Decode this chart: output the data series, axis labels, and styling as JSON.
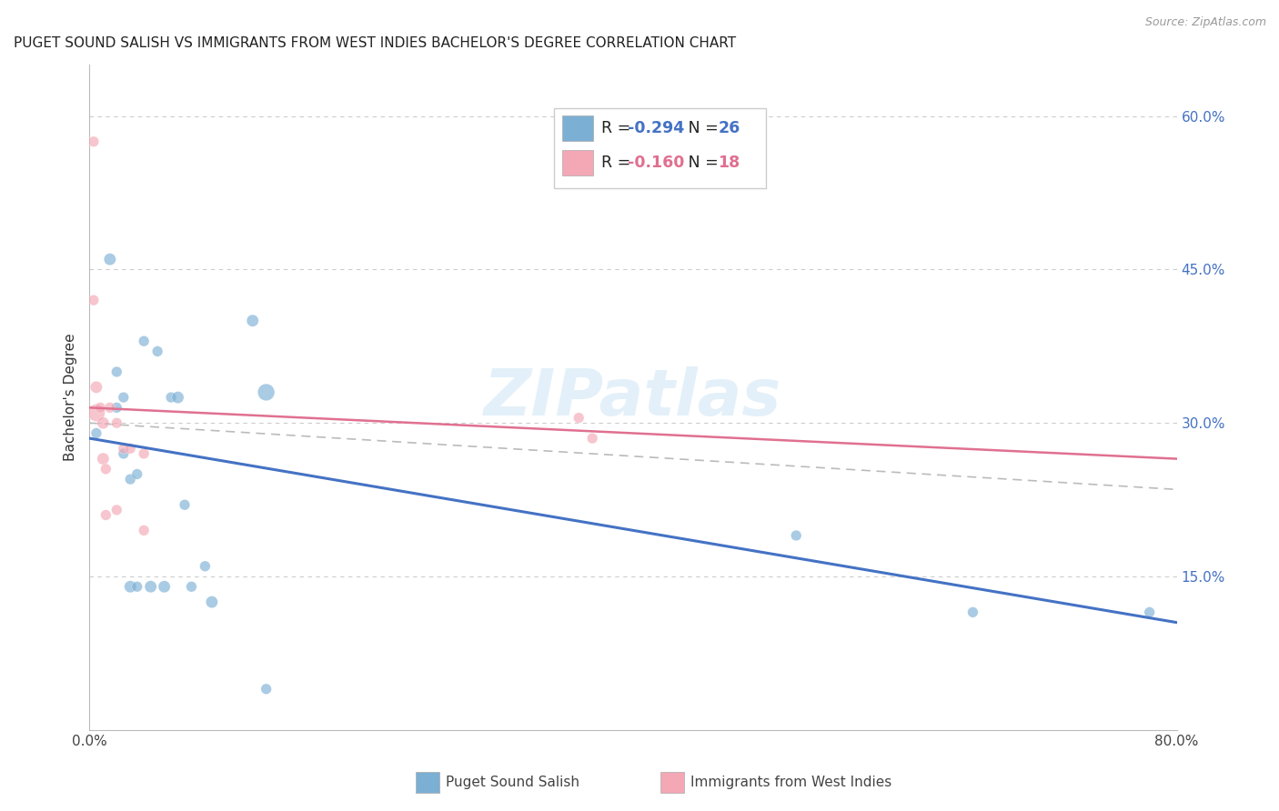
{
  "title": "PUGET SOUND SALISH VS IMMIGRANTS FROM WEST INDIES BACHELOR'S DEGREE CORRELATION CHART",
  "source": "Source: ZipAtlas.com",
  "ylabel": "Bachelor's Degree",
  "xlim": [
    0,
    0.8
  ],
  "ylim": [
    0,
    0.65
  ],
  "x_ticks": [
    0.0,
    0.2,
    0.4,
    0.6,
    0.8
  ],
  "x_tick_labels": [
    "0.0%",
    "",
    "",
    "",
    "80.0%"
  ],
  "y_ticks_right": [
    0.15,
    0.3,
    0.45,
    0.6
  ],
  "y_tick_labels_right": [
    "15.0%",
    "30.0%",
    "45.0%",
    "60.0%"
  ],
  "background_color": "#ffffff",
  "grid_color": "#cccccc",
  "blue_color": "#7bafd4",
  "pink_color": "#f4a7b5",
  "blue_line_color": "#4472c4",
  "pink_line_color": "#e07090",
  "dash_line_color": "#bbbbbb",
  "watermark_color": "#cde4f5",
  "blue_scatter_x": [
    0.005,
    0.015,
    0.02,
    0.02,
    0.025,
    0.025,
    0.03,
    0.03,
    0.035,
    0.035,
    0.04,
    0.045,
    0.05,
    0.055,
    0.06,
    0.065,
    0.07,
    0.075,
    0.085,
    0.09,
    0.12,
    0.13,
    0.13,
    0.52,
    0.65,
    0.78
  ],
  "blue_scatter_y": [
    0.29,
    0.46,
    0.35,
    0.315,
    0.325,
    0.27,
    0.245,
    0.14,
    0.25,
    0.14,
    0.38,
    0.14,
    0.37,
    0.14,
    0.325,
    0.325,
    0.22,
    0.14,
    0.16,
    0.125,
    0.4,
    0.33,
    0.04,
    0.19,
    0.115,
    0.115
  ],
  "blue_scatter_sizes": [
    70,
    90,
    70,
    70,
    70,
    70,
    70,
    90,
    70,
    70,
    70,
    90,
    70,
    90,
    70,
    90,
    70,
    70,
    70,
    90,
    90,
    180,
    70,
    70,
    70,
    70
  ],
  "pink_scatter_x": [
    0.003,
    0.003,
    0.005,
    0.005,
    0.008,
    0.01,
    0.01,
    0.012,
    0.012,
    0.015,
    0.02,
    0.02,
    0.025,
    0.03,
    0.04,
    0.04,
    0.36,
    0.37
  ],
  "pink_scatter_y": [
    0.575,
    0.42,
    0.335,
    0.31,
    0.315,
    0.3,
    0.265,
    0.255,
    0.21,
    0.315,
    0.3,
    0.215,
    0.275,
    0.275,
    0.27,
    0.195,
    0.305,
    0.285
  ],
  "pink_scatter_sizes": [
    70,
    70,
    90,
    190,
    70,
    90,
    90,
    70,
    70,
    70,
    70,
    70,
    70,
    70,
    70,
    70,
    70,
    70
  ],
  "blue_trendline_x": [
    0.0,
    0.8
  ],
  "blue_trendline_y": [
    0.285,
    0.105
  ],
  "pink_trendline_x": [
    0.0,
    0.8
  ],
  "pink_trendline_y": [
    0.315,
    0.265
  ],
  "dash_trendline_x": [
    0.0,
    0.8
  ],
  "dash_trendline_y": [
    0.3,
    0.235
  ],
  "legend_r1_prefix": "R = ",
  "legend_r1_value": "-0.294",
  "legend_n1_prefix": "N = ",
  "legend_n1_value": "26",
  "legend_r2_prefix": "R = ",
  "legend_r2_value": "-0.160",
  "legend_n2_prefix": "N = ",
  "legend_n2_value": "18",
  "series1_label": "Puget Sound Salish",
  "series2_label": "Immigrants from West Indies"
}
